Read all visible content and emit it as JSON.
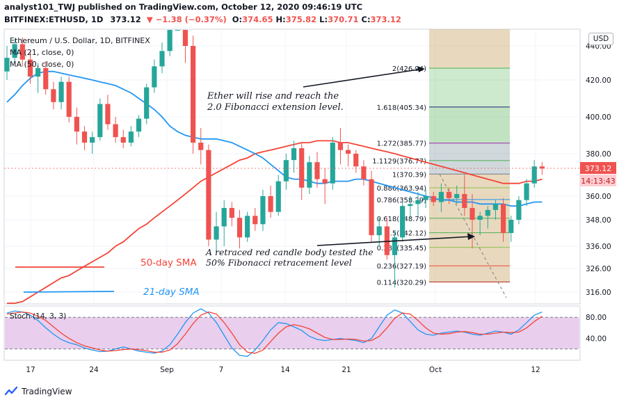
{
  "header": {
    "publisher": "analyst101_TWJ published on TradingView.com, October 12, 2020 09:46:19 UTC",
    "symbol": "BITFINEX:ETHUSD, 1D",
    "price": "373.12",
    "change": "▼ −1.38 (−0.37%)",
    "o_label": "O:",
    "o_value": "374.65",
    "h_label": "H:",
    "h_value": "375.82",
    "l_label": "L:",
    "l_value": "370.71",
    "c_label": "C:",
    "c_value": "373.12"
  },
  "legend": {
    "title": "Ethereum / U.S. Dollar, 1D, BITFINEX",
    "ma21": "MA (21, close, 0)",
    "ma50": "MA (50, close, 0)"
  },
  "branding": {
    "logo_text": "TradingView"
  },
  "colors": {
    "up": "#26a69a",
    "down": "#ef5350",
    "ma21": "#2196f3",
    "ma50": "#f44336",
    "stoch_k": "#2196f3",
    "stoch_d": "#f44336",
    "stoch_bg": "#e1bee7"
  },
  "chart_data": [
    {
      "type": "candlestick",
      "title": "Ethereum / U.S. Dollar, 1D, BITFINEX",
      "currency": "USD",
      "ylim": [
        313,
        448
      ],
      "y_ticks": [
        "316.00",
        "326.00",
        "336.00",
        "348.00",
        "360.00",
        "380.00",
        "400.00",
        "420.00",
        "440.00"
      ],
      "x_ticks": [
        "17",
        "24",
        "Sep",
        "7",
        "14",
        "21",
        "Oct",
        "12"
      ],
      "last_price_label": "373.12",
      "countdown_label": "14:13:43",
      "candles": [
        [
          425,
          440,
          420,
          433
        ],
        [
          433,
          444,
          430,
          441
        ],
        [
          441,
          445,
          428,
          432
        ],
        [
          432,
          437,
          418,
          422
        ],
        [
          422,
          430,
          413,
          427
        ],
        [
          427,
          431,
          412,
          415
        ],
        [
          415,
          419,
          404,
          408
        ],
        [
          408,
          422,
          404,
          419
        ],
        [
          419,
          422,
          397,
          400
        ],
        [
          400,
          405,
          385,
          392
        ],
        [
          392,
          395,
          382,
          386
        ],
        [
          386,
          392,
          380,
          389
        ],
        [
          389,
          410,
          387,
          407
        ],
        [
          407,
          412,
          393,
          396
        ],
        [
          396,
          400,
          386,
          389
        ],
        [
          389,
          393,
          383,
          386
        ],
        [
          386,
          395,
          384,
          392
        ],
        [
          392,
          401,
          389,
          399
        ],
        [
          399,
          418,
          396,
          416
        ],
        [
          416,
          432,
          413,
          428
        ],
        [
          428,
          442,
          424,
          437
        ],
        [
          437,
          457,
          434,
          454
        ],
        [
          454,
          484,
          450,
          480
        ],
        [
          480,
          482,
          430,
          440
        ],
        [
          440,
          446,
          380,
          386
        ],
        [
          386,
          394,
          375,
          382
        ],
        [
          382,
          385,
          336,
          339
        ],
        [
          339,
          352,
          332,
          345
        ],
        [
          345,
          358,
          336,
          354
        ],
        [
          354,
          357,
          345,
          349
        ],
        [
          349,
          353,
          335,
          340
        ],
        [
          340,
          352,
          338,
          350
        ],
        [
          350,
          354,
          343,
          346
        ],
        [
          346,
          363,
          343,
          360
        ],
        [
          360,
          365,
          349,
          352
        ],
        [
          352,
          370,
          350,
          367
        ],
        [
          367,
          380,
          363,
          377
        ],
        [
          377,
          387,
          371,
          383
        ],
        [
          383,
          386,
          358,
          364
        ],
        [
          364,
          379,
          361,
          376
        ],
        [
          376,
          381,
          364,
          368
        ],
        [
          368,
          373,
          356,
          366
        ],
        [
          366,
          389,
          363,
          386
        ],
        [
          386,
          394,
          375,
          382
        ],
        [
          382,
          385,
          374,
          380
        ],
        [
          380,
          382,
          371,
          374
        ],
        [
          374,
          377,
          365,
          368
        ],
        [
          368,
          372,
          338,
          341
        ],
        [
          341,
          349,
          336,
          345
        ],
        [
          345,
          349,
          330,
          332
        ],
        [
          332,
          343,
          318,
          340
        ],
        [
          340,
          357,
          338,
          355
        ],
        [
          355,
          360,
          349,
          356
        ],
        [
          356,
          362,
          350,
          358
        ],
        [
          358,
          363,
          354,
          360
        ],
        [
          360,
          362,
          355,
          357
        ],
        [
          357,
          366,
          352,
          362
        ],
        [
          362,
          364,
          356,
          359
        ],
        [
          359,
          365,
          356,
          361
        ],
        [
          361,
          370,
          350,
          354
        ],
        [
          354,
          361,
          335,
          348
        ],
        [
          348,
          352,
          341,
          350
        ],
        [
          350,
          355,
          344,
          353
        ],
        [
          353,
          358,
          348,
          356
        ],
        [
          356,
          359,
          338,
          342
        ],
        [
          342,
          350,
          338,
          348
        ],
        [
          348,
          360,
          346,
          358
        ],
        [
          358,
          368,
          355,
          366
        ],
        [
          366,
          377,
          364,
          374
        ],
        [
          374,
          376,
          370,
          373
        ]
      ],
      "ma21": [
        408,
        412,
        417,
        421,
        424,
        425,
        425,
        424,
        423,
        422,
        421,
        420,
        419,
        418,
        417,
        415,
        413,
        410,
        407,
        404,
        400,
        395,
        392,
        390,
        389,
        388,
        388,
        388,
        387,
        386,
        384,
        382,
        380,
        378,
        375,
        372,
        369,
        368,
        368,
        367,
        366,
        366,
        367,
        367,
        367,
        368,
        368,
        367,
        366,
        365,
        364,
        363,
        362,
        361,
        360,
        359,
        358,
        358,
        357,
        357,
        357,
        356,
        356,
        356,
        356,
        355,
        355,
        356,
        357,
        357
      ],
      "ma50": [
        308,
        310,
        312,
        314,
        316,
        318,
        320,
        322,
        323,
        325,
        327,
        329,
        331,
        333,
        336,
        338,
        341,
        344,
        346,
        349,
        352,
        355,
        358,
        361,
        364,
        367,
        369,
        371,
        373,
        375,
        377,
        378,
        380,
        381,
        382,
        383,
        384,
        385,
        386,
        386,
        387,
        387,
        387,
        386,
        386,
        385,
        384,
        383,
        382,
        381,
        380,
        379,
        378,
        377,
        376,
        375,
        374,
        373,
        372,
        371,
        370,
        369,
        368,
        367,
        366,
        366,
        366,
        367,
        367,
        368
      ],
      "fibonacci": [
        {
          "label": "2(426.94)",
          "value": 426.94
        },
        {
          "label": "1.618(405.34)",
          "value": 405.34
        },
        {
          "label": "1.272(385.77)",
          "value": 385.77
        },
        {
          "label": "1.1129(376.77)",
          "value": 376.77
        },
        {
          "label": "1(370.39)",
          "value": 370.39
        },
        {
          "label": "0.886(363.94)",
          "value": 363.94
        },
        {
          "label": "0.786(358.29)",
          "value": 358.29
        },
        {
          "label": "0.618(348.79)",
          "value": 348.79
        },
        {
          "label": "0.5(342.12)",
          "value": 342.12
        },
        {
          "label": "0.382(335.45)",
          "value": 335.45
        },
        {
          "label": "0.236(327.19)",
          "value": 327.19
        },
        {
          "label": "0.114(320.29)",
          "value": 320.29
        }
      ],
      "annotations": [
        {
          "text": "Ether will rise and reach the",
          "role": "callout-top-1"
        },
        {
          "text": "2.0 Fibonacci extension level.",
          "role": "callout-top-2"
        },
        {
          "text": "A retraced red candle body tested the",
          "role": "callout-bottom-1"
        },
        {
          "text": "50% Fibonacci retracement level",
          "role": "callout-bottom-2"
        },
        {
          "text": "50-day SMA",
          "role": "legend-50"
        },
        {
          "text": "21-day SMA",
          "role": "legend-21"
        }
      ]
    },
    {
      "type": "line",
      "title": "Stoch (14, 3, 3)",
      "ylim": [
        0,
        100
      ],
      "y_ticks": [
        "80.00",
        "40.00"
      ],
      "bands": [
        80,
        20
      ],
      "series": [
        {
          "name": "%K",
          "values": [
            88,
            92,
            90,
            84,
            74,
            60,
            48,
            38,
            32,
            28,
            22,
            18,
            15,
            16,
            20,
            24,
            20,
            16,
            14,
            12,
            16,
            28,
            48,
            70,
            88,
            96,
            88,
            70,
            46,
            22,
            8,
            6,
            18,
            36,
            56,
            70,
            68,
            62,
            55,
            44,
            38,
            36,
            38,
            40,
            38,
            36,
            32,
            40,
            62,
            84,
            94,
            88,
            72,
            56,
            48,
            46,
            50,
            52,
            54,
            52,
            48,
            46,
            50,
            54,
            52,
            48,
            56,
            70,
            84,
            90
          ]
        },
        {
          "name": "%D",
          "values": [
            86,
            88,
            90,
            88,
            82,
            74,
            62,
            50,
            40,
            32,
            26,
            22,
            18,
            16,
            17,
            19,
            20,
            19,
            17,
            14,
            14,
            18,
            30,
            48,
            68,
            84,
            90,
            86,
            70,
            50,
            28,
            14,
            12,
            18,
            34,
            50,
            62,
            66,
            63,
            58,
            50,
            42,
            38,
            38,
            39,
            38,
            35,
            36,
            44,
            60,
            78,
            88,
            86,
            74,
            60,
            50,
            48,
            49,
            52,
            53,
            51,
            48,
            48,
            50,
            52,
            51,
            52,
            60,
            72,
            82
          ]
        }
      ]
    }
  ]
}
